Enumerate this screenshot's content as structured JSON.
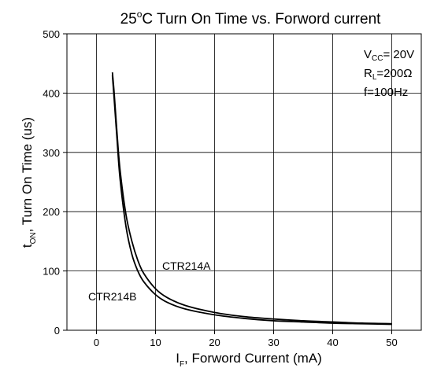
{
  "chart_data": {
    "type": "line",
    "title": {
      "prefix": "25",
      "sup": "o",
      "suffix": "C Turn On Time vs. Forword current"
    },
    "xlabel": {
      "main": "I",
      "sub": "F",
      "rest": ", Forword Current (mA)"
    },
    "ylabel": {
      "main": "t",
      "sub": "ON",
      "rest": ", Turn On Time (us)"
    },
    "xlim": [
      -5,
      55
    ],
    "ylim": [
      0,
      500
    ],
    "x_ticks": [
      0,
      10,
      20,
      30,
      40,
      50
    ],
    "y_ticks": [
      0,
      100,
      200,
      300,
      400,
      500
    ],
    "grid": true,
    "conditions": [
      {
        "main": "V",
        "sub": "CC",
        "rest": "= 20V"
      },
      {
        "main": "R",
        "sub": "L",
        "rest": "=200Ω"
      },
      {
        "main": "f=100Hz",
        "sub": "",
        "rest": ""
      }
    ],
    "series": [
      {
        "name": "CTR214A",
        "x": [
          2.7,
          3,
          3.5,
          4,
          5,
          6,
          7,
          8,
          10,
          12,
          15,
          20,
          25,
          30,
          35,
          40,
          45,
          50
        ],
        "y": [
          435,
          400,
          330,
          270,
          195,
          150,
          118,
          96,
          70,
          55,
          42,
          30,
          23,
          19,
          16,
          14,
          12,
          11
        ]
      },
      {
        "name": "CTR214B",
        "x": [
          2.7,
          3,
          3.5,
          4,
          5,
          6,
          7,
          8,
          10,
          12,
          15,
          20,
          25,
          30,
          35,
          40,
          45,
          50
        ],
        "y": [
          430,
          390,
          320,
          255,
          175,
          128,
          100,
          82,
          60,
          47,
          36,
          26,
          20,
          16,
          14,
          12,
          11,
          10
        ]
      }
    ]
  }
}
